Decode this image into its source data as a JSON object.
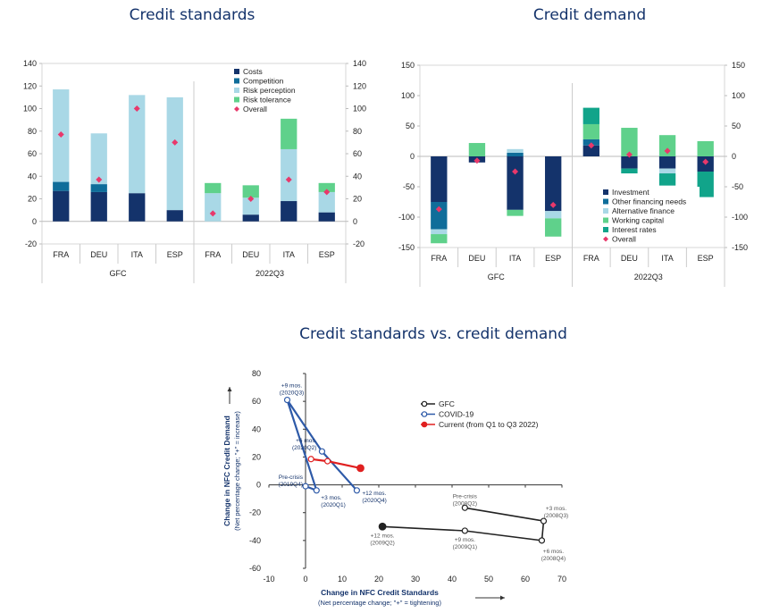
{
  "charts": [
    {
      "id": "standards",
      "type": "bar",
      "stacked": true,
      "title": "Credit standards",
      "ylim": [
        -20,
        140
      ],
      "yticks": [
        -20,
        0,
        20,
        40,
        60,
        80,
        100,
        120,
        140
      ],
      "categories": [
        "FRA",
        "DEU",
        "ITA",
        "ESP",
        "FRA",
        "DEU",
        "ITA",
        "ESP"
      ],
      "groups": [
        {
          "label": "GFC",
          "count": 4
        },
        {
          "label": "2022Q3",
          "count": 4
        }
      ],
      "series": [
        {
          "name": "Costs",
          "color": "#14336b",
          "values": [
            27,
            26,
            25,
            10,
            0,
            6,
            18,
            8
          ]
        },
        {
          "name": "Competition",
          "color": "#0f6d9a",
          "values": [
            8,
            7,
            0,
            0,
            0,
            0,
            0,
            0
          ]
        },
        {
          "name": "Risk perception",
          "color": "#a9d8e6",
          "values": [
            82,
            45,
            87,
            100,
            25,
            15,
            46,
            18
          ]
        },
        {
          "name": "Risk tolerance",
          "color": "#5fd18b",
          "values": [
            0,
            0,
            0,
            0,
            9,
            11,
            27,
            8
          ]
        }
      ],
      "overall": {
        "name": "Overall",
        "color": "#e8386b",
        "values": [
          77,
          37,
          100,
          70,
          7,
          20,
          37,
          26
        ]
      },
      "legend_position": "top-right"
    },
    {
      "id": "demand",
      "type": "bar",
      "stacked": true,
      "title": "Credit demand",
      "ylim": [
        -150,
        150
      ],
      "yticks": [
        -150,
        -100,
        -50,
        0,
        50,
        100,
        150
      ],
      "categories": [
        "FRA",
        "DEU",
        "ITA",
        "ESP",
        "FRA",
        "DEU",
        "ITA",
        "ESP"
      ],
      "groups": [
        {
          "label": "GFC",
          "count": 4
        },
        {
          "label": "2022Q3",
          "count": 4
        }
      ],
      "series": [
        {
          "name": "Investment",
          "color": "#14336b",
          "values": [
            -75,
            -10,
            -88,
            -90,
            18,
            -20,
            -20,
            -25
          ]
        },
        {
          "name": "Other financing needs",
          "color": "#0f6d9a",
          "values": [
            -45,
            0,
            6,
            0,
            10,
            0,
            0,
            0
          ]
        },
        {
          "name": "Alternative finance",
          "color": "#a9d8e6",
          "values": [
            -8,
            0,
            6,
            -12,
            0,
            0,
            -8,
            0
          ]
        },
        {
          "name": "Working capital",
          "color": "#5fd18b",
          "values": [
            -15,
            22,
            -10,
            -30,
            25,
            47,
            35,
            25
          ]
        },
        {
          "name": "Interest rates",
          "color": "#11a48a",
          "values": [
            0,
            0,
            0,
            0,
            27,
            -8,
            -20,
            -42
          ]
        }
      ],
      "overall": {
        "name": "Overall",
        "color": "#e8386b",
        "values": [
          -87,
          -7,
          -25,
          -80,
          18,
          3,
          9,
          -9
        ]
      },
      "legend_position": "bottom-right"
    }
  ],
  "chart_data": [
    {
      "type": "bar",
      "title": "Credit standards",
      "categories": [
        "GFC FRA",
        "GFC DEU",
        "GFC ITA",
        "GFC ESP",
        "2022Q3 FRA",
        "2022Q3 DEU",
        "2022Q3 ITA",
        "2022Q3 ESP"
      ],
      "series": [
        {
          "name": "Costs",
          "values": [
            27,
            26,
            25,
            10,
            0,
            6,
            18,
            8
          ]
        },
        {
          "name": "Competition",
          "values": [
            8,
            7,
            0,
            0,
            0,
            0,
            0,
            0
          ]
        },
        {
          "name": "Risk perception",
          "values": [
            82,
            45,
            87,
            100,
            25,
            15,
            46,
            18
          ]
        },
        {
          "name": "Risk tolerance",
          "values": [
            0,
            0,
            0,
            0,
            9,
            11,
            27,
            8
          ]
        },
        {
          "name": "Overall",
          "values": [
            77,
            37,
            100,
            70,
            7,
            20,
            37,
            26
          ]
        }
      ],
      "ylim": [
        -20,
        140
      ]
    },
    {
      "type": "bar",
      "title": "Credit demand",
      "categories": [
        "GFC FRA",
        "GFC DEU",
        "GFC ITA",
        "GFC ESP",
        "2022Q3 FRA",
        "2022Q3 DEU",
        "2022Q3 ITA",
        "2022Q3 ESP"
      ],
      "series": [
        {
          "name": "Investment",
          "values": [
            -75,
            -10,
            -88,
            -90,
            18,
            -20,
            -20,
            -25
          ]
        },
        {
          "name": "Other financing needs",
          "values": [
            -45,
            0,
            6,
            0,
            10,
            0,
            0,
            0
          ]
        },
        {
          "name": "Alternative finance",
          "values": [
            -8,
            0,
            6,
            -12,
            0,
            0,
            -8,
            0
          ]
        },
        {
          "name": "Working capital",
          "values": [
            -15,
            22,
            -10,
            -30,
            25,
            47,
            35,
            25
          ]
        },
        {
          "name": "Interest rates",
          "values": [
            0,
            0,
            0,
            0,
            27,
            -8,
            -20,
            -42
          ]
        },
        {
          "name": "Overall",
          "values": [
            -87,
            -7,
            -25,
            -80,
            18,
            3,
            9,
            -9
          ]
        }
      ],
      "ylim": [
        -150,
        150
      ]
    },
    {
      "type": "line",
      "title": "Credit standards vs. credit demand",
      "xlabel": "Change in NFC Credit Standards",
      "xlabel_sub": "(Net percentage change; \"+\" = tightening)",
      "ylabel": "Change in NFC Credit Demand",
      "ylabel_sub": "(Net percentage change; \"+\" = increase)",
      "xlim": [
        -10,
        70
      ],
      "ylim": [
        -60,
        80
      ],
      "xticks": [
        -10,
        0,
        10,
        20,
        30,
        40,
        50,
        60,
        70
      ],
      "yticks": [
        -60,
        -40,
        -20,
        0,
        20,
        40,
        60,
        80
      ],
      "series": [
        {
          "name": "GFC",
          "color": "#222222",
          "style": "open",
          "x": [
            43.5,
            65,
            64.5,
            43.5,
            21
          ],
          "y": [
            -16.5,
            -26,
            -40,
            -33,
            -30
          ],
          "labels": [
            [
              "Pre-crisis",
              "(2008Q2)"
            ],
            [
              "+3 mos.",
              "(2008Q3)"
            ],
            [
              "+6 mos.",
              "(2008Q4)"
            ],
            [
              "+9 mos.",
              "(2009Q1)"
            ],
            [
              "+12 mos.",
              "(2009Q2)"
            ]
          ]
        },
        {
          "name": "COVID-19",
          "color": "#2e5aa8",
          "style": "open",
          "x": [
            0,
            3,
            -5,
            4.5,
            14
          ],
          "y": [
            -1,
            -4,
            61,
            24,
            -4
          ],
          "labels": [
            [
              "Pre-crisis",
              "(2019Q4)"
            ],
            [
              "+3 mos.",
              "(2020Q1)"
            ],
            [
              "+9 mos.",
              "(2020Q3)"
            ],
            [
              "+6 mos.",
              "(2020Q2)"
            ],
            [
              "+12 mos.",
              "(2020Q4)"
            ]
          ]
        },
        {
          "name": "Current (from Q1 to Q3 2022)",
          "color": "#e02020",
          "style": "open",
          "x": [
            1.5,
            6,
            15
          ],
          "y": [
            18.5,
            17,
            12
          ]
        }
      ]
    }
  ]
}
